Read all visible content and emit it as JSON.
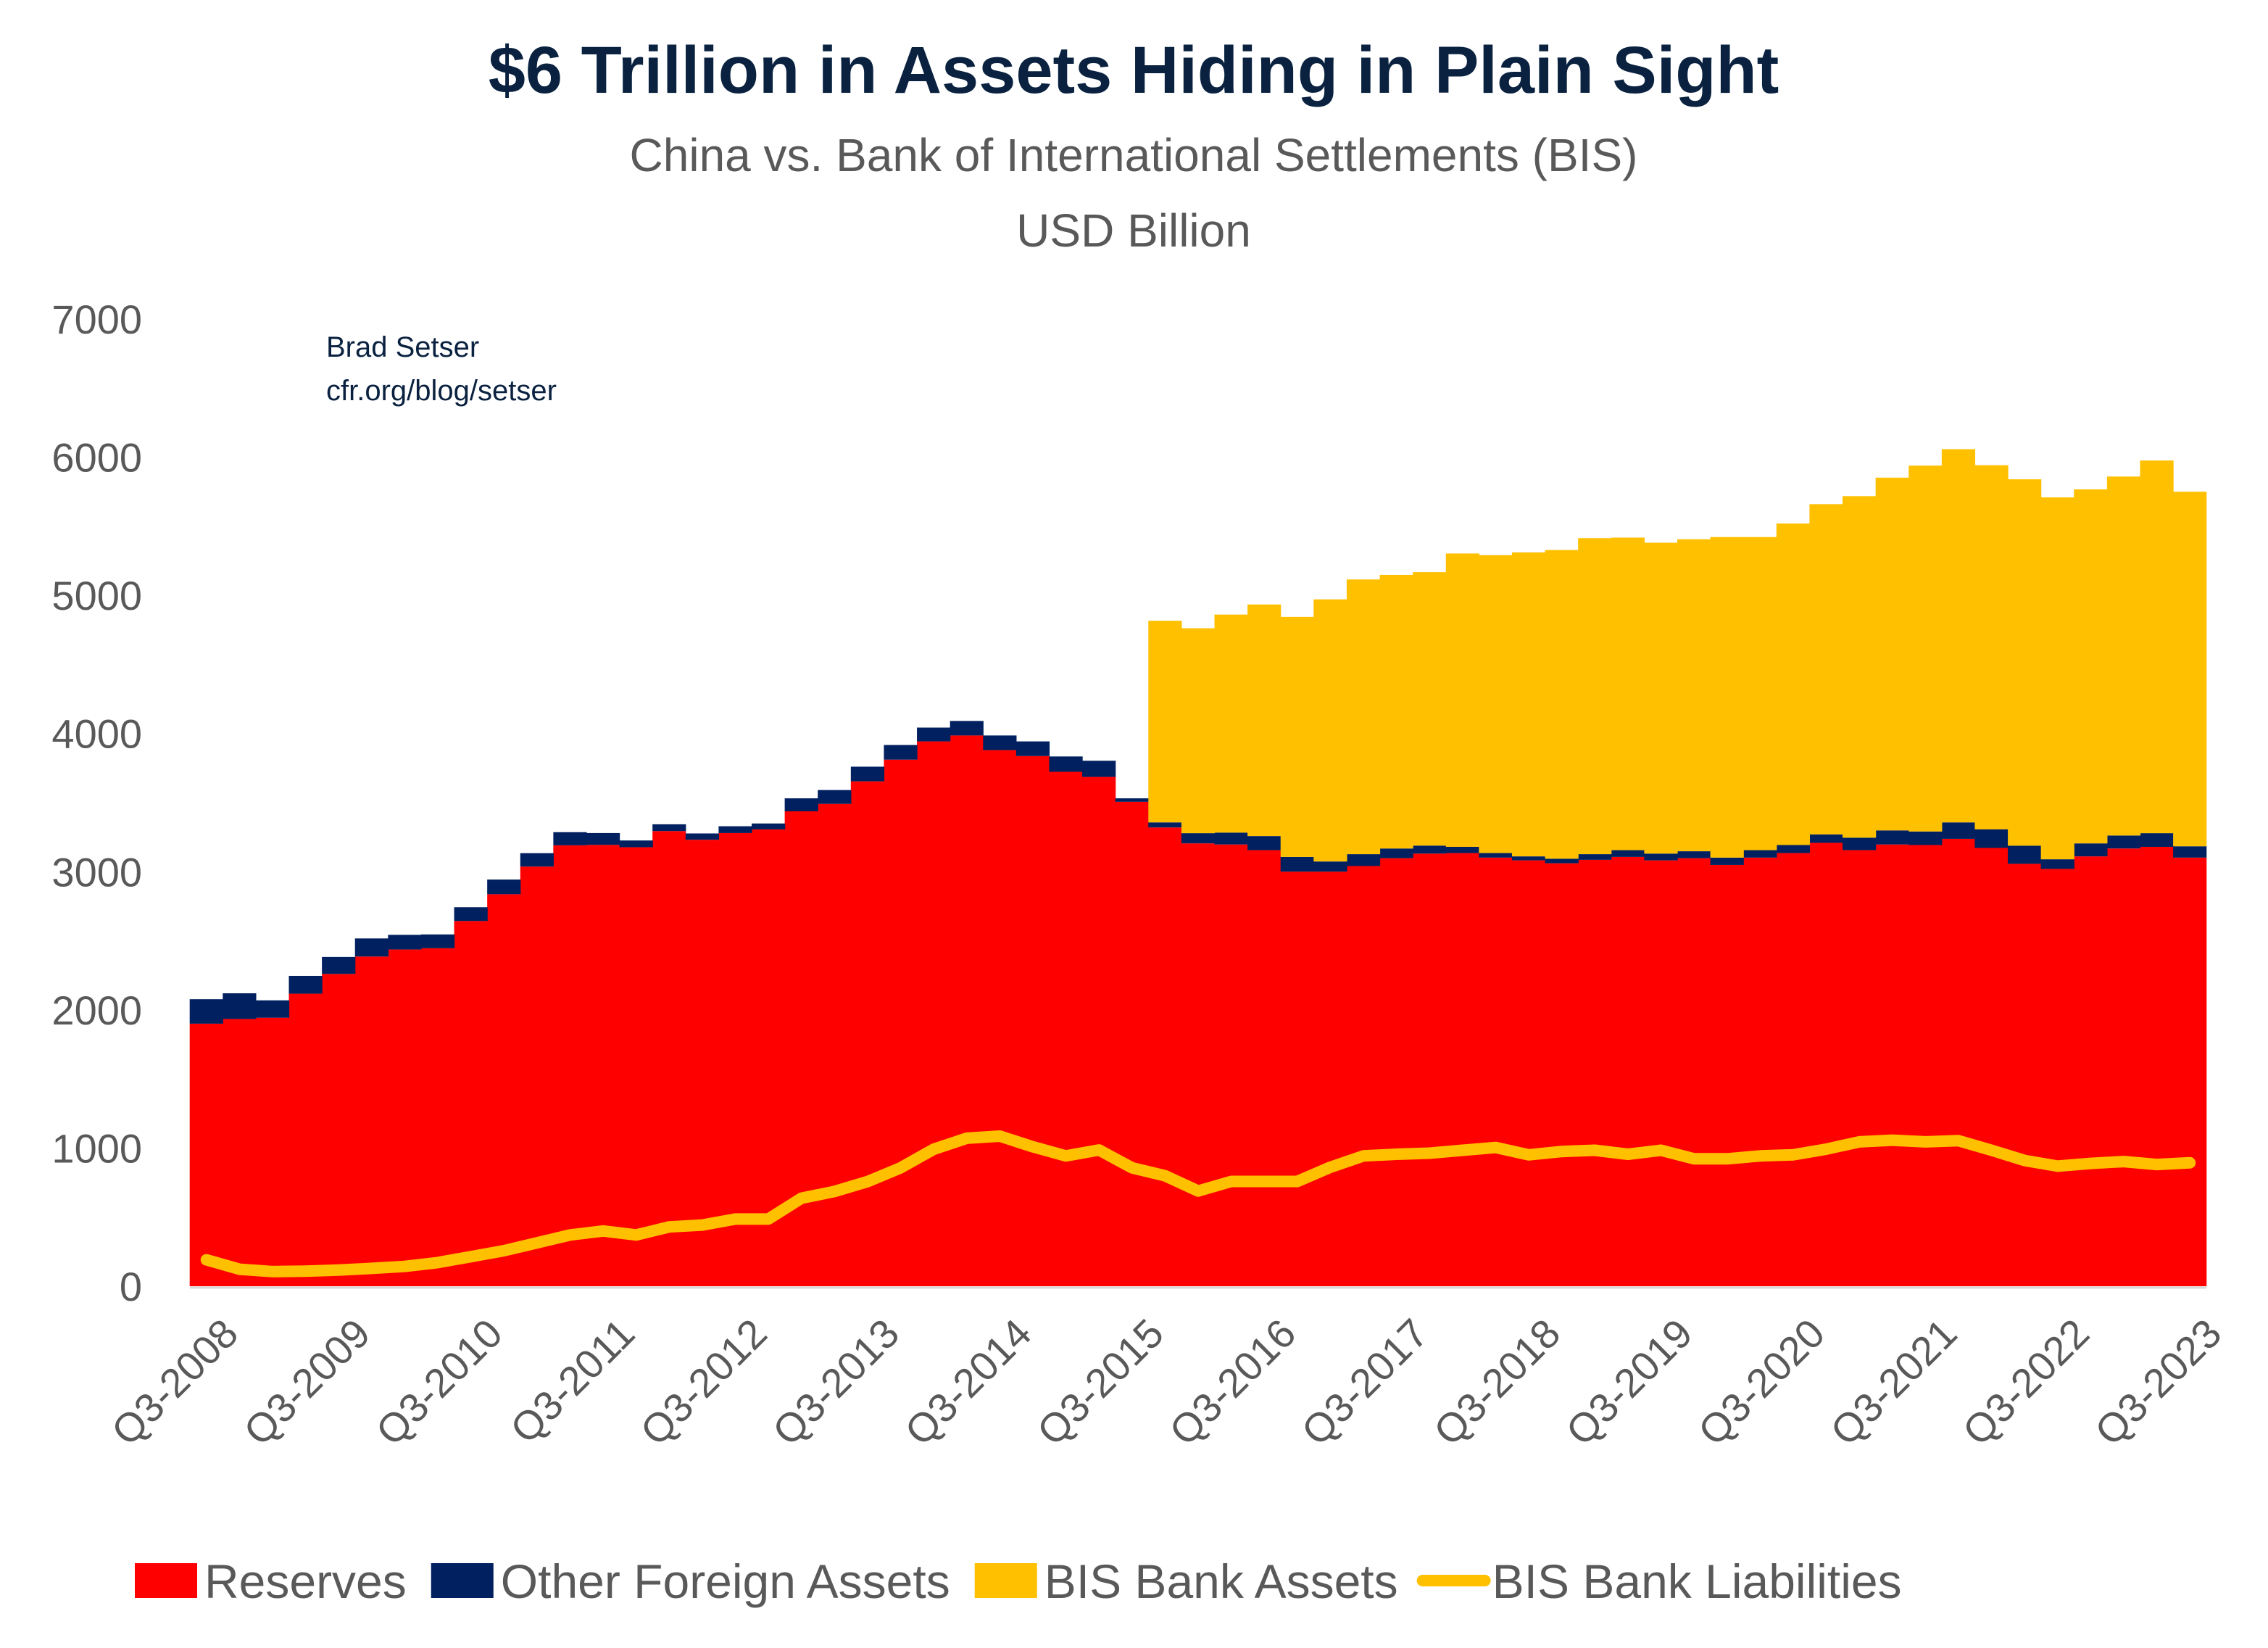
{
  "chart_data": {
    "type": "area",
    "title": "$6 Trillion in Assets Hiding in Plain Sight",
    "subtitle": "China vs. Bank of International Settlements (BIS)",
    "unit_label": "USD Billion",
    "annotation": [
      "Brad Setser",
      "cfr.org/blog/setser"
    ],
    "ylim": [
      0,
      7000
    ],
    "yticks": [
      0,
      1000,
      2000,
      3000,
      4000,
      5000,
      6000,
      7000
    ],
    "grid": false,
    "legend_position": "bottom",
    "x_start": "Q3-2008",
    "x_end": "Q3-2023",
    "xtick_labels": [
      "Q3-2008",
      "Q3-2009",
      "Q3-2010",
      "Q3-2011",
      "Q3-2012",
      "Q3-2013",
      "Q3-2014",
      "Q3-2015",
      "Q3-2016",
      "Q3-2017",
      "Q3-2018",
      "Q3-2019",
      "Q3-2020",
      "Q3-2021",
      "Q3-2022",
      "Q3-2023"
    ],
    "series": [
      {
        "name": "Reserves",
        "kind": "stacked-area",
        "color": "#FF0000",
        "values": [
          1900,
          1934,
          1943,
          2117,
          2260,
          2386,
          2437,
          2446,
          2643,
          2837,
          3037,
          3191,
          3194,
          3177,
          3294,
          3231,
          3280,
          3306,
          3437,
          3491,
          3654,
          3811,
          3943,
          3986,
          3880,
          3837,
          3723,
          3686,
          3506,
          3320,
          3205,
          3197,
          3156,
          3000,
          3000,
          3041,
          3098,
          3131,
          3135,
          3102,
          3082,
          3061,
          3086,
          3107,
          3082,
          3098,
          3049,
          3102,
          3135,
          3209,
          3156,
          3197,
          3193,
          3238,
          3172,
          3057,
          3020,
          3111,
          3168,
          3180,
          3102
        ]
      },
      {
        "name": "Other Foreign Assets",
        "kind": "stacked-area",
        "color": "#002060",
        "values": [
          177,
          186,
          126,
          129,
          123,
          131,
          106,
          100,
          100,
          106,
          97,
          95,
          86,
          49,
          49,
          46,
          49,
          43,
          94,
          100,
          106,
          106,
          100,
          105,
          106,
          106,
          111,
          117,
          25,
          37,
          74,
          86,
          102,
          107,
          74,
          86,
          70,
          58,
          45,
          33,
          29,
          33,
          41,
          49,
          49,
          50,
          53,
          54,
          58,
          61,
          90,
          102,
          98,
          119,
          135,
          131,
          70,
          94,
          94,
          99,
          82
        ]
      },
      {
        "name": "BIS Bank Assets",
        "kind": "stacked-area",
        "color": "#FFC000",
        "values": [
          null,
          null,
          null,
          null,
          null,
          null,
          null,
          null,
          null,
          null,
          null,
          null,
          null,
          null,
          null,
          null,
          null,
          null,
          null,
          null,
          null,
          null,
          null,
          null,
          null,
          null,
          null,
          null,
          null,
          1459,
          1483,
          1578,
          1676,
          1737,
          1897,
          1988,
          1980,
          1979,
          2123,
          2156,
          2200,
          2234,
          2287,
          2262,
          2250,
          2258,
          2320,
          2266,
          2327,
          2390,
          2472,
          2553,
          2648,
          2701,
          2635,
          2652,
          2619,
          2562,
          2598,
          2697,
          2566
        ]
      },
      {
        "name": "BIS Bank Liabilities",
        "kind": "line",
        "color": "#FFC000",
        "values": [
          191,
          123,
          106,
          109,
          117,
          129,
          143,
          171,
          214,
          257,
          314,
          371,
          400,
          371,
          429,
          443,
          486,
          486,
          637,
          686,
          757,
          857,
          991,
          1071,
          1086,
          1009,
          943,
          986,
          857,
          799,
          689,
          758,
          758,
          758,
          861,
          943,
          955,
          963,
          984,
          1004,
          951,
          975,
          984,
          955,
          984,
          922,
          922,
          943,
          951,
          992,
          1045,
          1057,
          1045,
          1053,
          984,
          910,
          869,
          889,
          902,
          881,
          893
        ]
      }
    ]
  }
}
